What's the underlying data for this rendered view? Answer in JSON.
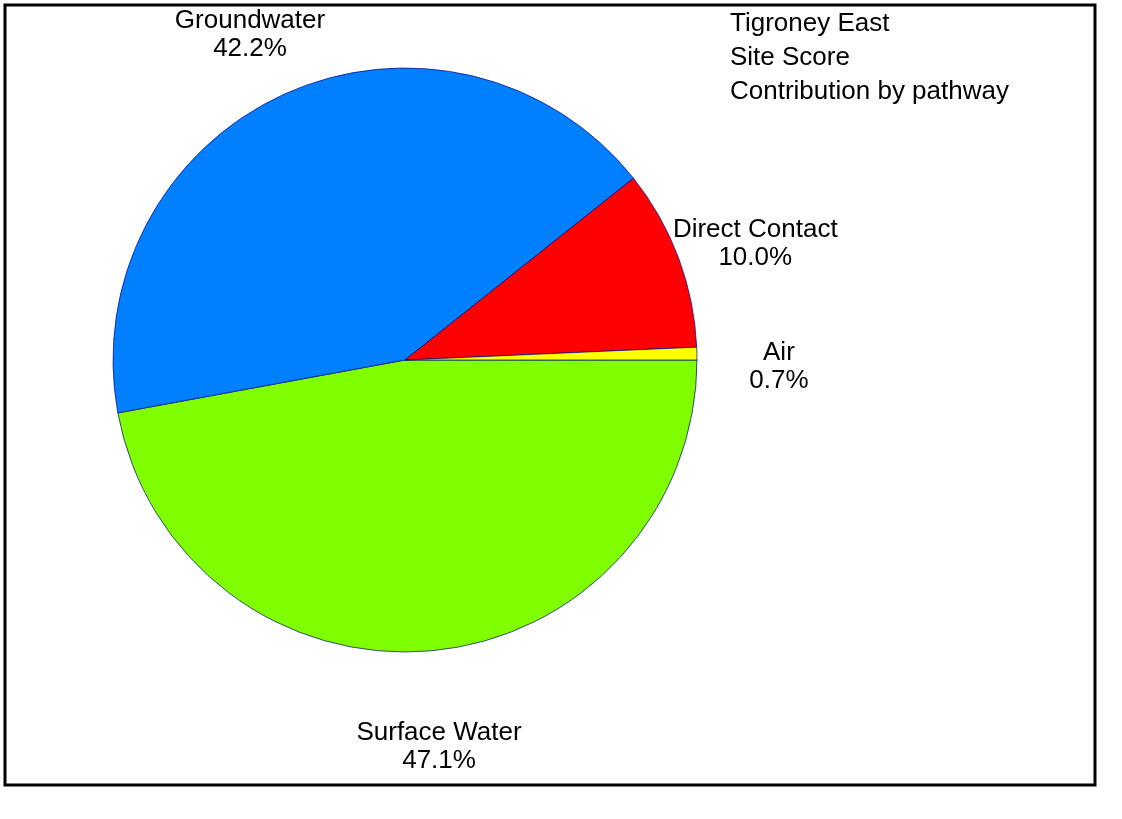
{
  "chart_data": {
    "type": "pie",
    "title": "Tigroney East\nSite Score\nContribution by pathway",
    "categories": [
      "Surface Water",
      "Groundwater",
      "Direct Contact",
      "Air"
    ],
    "values": [
      47.1,
      42.2,
      10.0,
      0.7
    ],
    "colors": [
      "#80ff00",
      "#0080ff",
      "#ff0000",
      "#ffff00"
    ],
    "value_labels": [
      "47.1%",
      "42.2%",
      "10.0%",
      "0.7%"
    ],
    "legend": false
  }
}
